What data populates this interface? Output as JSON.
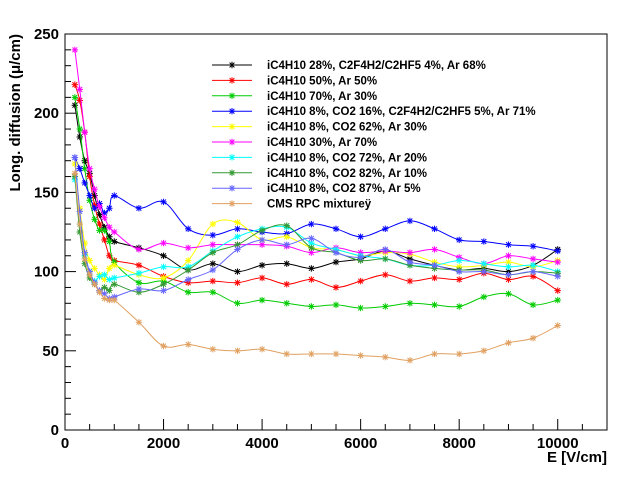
{
  "chart_data": {
    "type": "line",
    "xlabel": "E [V/cm]",
    "ylabel": "Long. diffusion (μ/cm)",
    "xlim": [
      0,
      11000
    ],
    "ylim": [
      0,
      250
    ],
    "x_ticks": [
      0,
      2000,
      4000,
      6000,
      8000,
      10000
    ],
    "y_ticks": [
      0,
      50,
      100,
      150,
      200,
      250
    ],
    "grid": false,
    "legend_position": "top-right",
    "series": [
      {
        "name": "iC4H10 28%, C2F4H2/C2HF5 4%, Ar 68%",
        "color": "#000000",
        "x": [
          200,
          300,
          400,
          500,
          600,
          700,
          800,
          900,
          1000,
          1500,
          2000,
          2500,
          3000,
          3500,
          4000,
          4500,
          5000,
          5500,
          6000,
          6500,
          7000,
          7500,
          8000,
          8500,
          9000,
          9500,
          10000
        ],
        "y": [
          205,
          185,
          170,
          162,
          148,
          136,
          128,
          122,
          119,
          115,
          110,
          101,
          105,
          100,
          104,
          105,
          102,
          106,
          108,
          113,
          108,
          104,
          101,
          102,
          100,
          104,
          114
        ]
      },
      {
        "name": "iC4H10 50%, Ar 50%",
        "color": "#ff0000",
        "x": [
          200,
          300,
          400,
          500,
          600,
          700,
          800,
          900,
          1000,
          1500,
          2000,
          2500,
          3000,
          3500,
          4000,
          4500,
          5000,
          5500,
          6000,
          6500,
          7000,
          7500,
          8000,
          8500,
          9000,
          9500,
          10000
        ],
        "y": [
          218,
          208,
          188,
          160,
          142,
          130,
          120,
          110,
          107,
          104,
          97,
          93,
          94,
          93,
          96,
          92,
          95,
          90,
          94,
          98,
          94,
          96,
          95,
          99,
          95,
          97,
          88
        ]
      },
      {
        "name": "iC4H10 70%, Ar 30%",
        "color": "#00cc00",
        "x": [
          200,
          300,
          400,
          500,
          600,
          700,
          800,
          900,
          1000,
          1500,
          2000,
          2500,
          3000,
          3500,
          4000,
          4500,
          5000,
          5500,
          6000,
          6500,
          7000,
          7500,
          8000,
          8500,
          9000,
          9500,
          10000
        ],
        "y": [
          210,
          190,
          165,
          145,
          133,
          126,
          126,
          119,
          106,
          93,
          94,
          87,
          87,
          80,
          82,
          80,
          78,
          79,
          77,
          78,
          80,
          79,
          78,
          84,
          86,
          79,
          82
        ]
      },
      {
        "name": "iC4H10 8%, CO2 16%, C2F4H2/C2HF5 5%, Ar 71%",
        "color": "#0000ff",
        "x": [
          200,
          300,
          400,
          500,
          600,
          700,
          800,
          900,
          1000,
          1500,
          2000,
          2500,
          3000,
          3500,
          4000,
          4500,
          5000,
          5500,
          6000,
          6500,
          7000,
          7500,
          8000,
          8500,
          9000,
          9500,
          10000
        ],
        "y": [
          172,
          165,
          156,
          148,
          140,
          143,
          137,
          140,
          148,
          140,
          144,
          127,
          123,
          127,
          125,
          124,
          130,
          127,
          122,
          127,
          132,
          127,
          120,
          119,
          117,
          116,
          113
        ]
      },
      {
        "name": "iC4H10 8%, CO2 62%, Ar 30%",
        "color": "#ffff00",
        "x": [
          200,
          300,
          400,
          500,
          600,
          700,
          800,
          900,
          1000,
          1500,
          2000,
          2500,
          3000,
          3500,
          4000,
          4500,
          5000,
          5500,
          6000,
          6500,
          7000,
          7500,
          8000,
          8500,
          9000,
          9500,
          10000
        ],
        "y": [
          168,
          140,
          118,
          107,
          102,
          98,
          95,
          102,
          104,
          98,
          96,
          107,
          130,
          131,
          120,
          122,
          115,
          114,
          110,
          112,
          111,
          106,
          103,
          104,
          106,
          103,
          107
        ]
      },
      {
        "name": "iC4H10 30%, Ar 70%",
        "color": "#ff00ff",
        "x": [
          200,
          300,
          400,
          500,
          600,
          700,
          800,
          900,
          1000,
          1500,
          2000,
          2500,
          3000,
          3500,
          4000,
          4500,
          5000,
          5500,
          6000,
          6500,
          7000,
          7500,
          8000,
          8500,
          9000,
          9500,
          10000
        ],
        "y": [
          240,
          215,
          188,
          165,
          152,
          141,
          134,
          128,
          125,
          114,
          118,
          115,
          117,
          117,
          117,
          116,
          112,
          115,
          112,
          113,
          112,
          114,
          109,
          105,
          110,
          108,
          106
        ]
      },
      {
        "name": "iC4H10 8%, CO2 72%, Ar 20%",
        "color": "#00ffff",
        "x": [
          200,
          300,
          400,
          500,
          600,
          700,
          800,
          900,
          1000,
          1500,
          2000,
          2500,
          3000,
          3500,
          4000,
          4500,
          5000,
          5500,
          6000,
          6500,
          7000,
          7500,
          8000,
          8500,
          9000,
          9500,
          10000
        ],
        "y": [
          158,
          130,
          110,
          100,
          94,
          97,
          98,
          95,
          96,
          99,
          103,
          103,
          113,
          122,
          127,
          128,
          118,
          114,
          110,
          108,
          104,
          104,
          107,
          105,
          103,
          104,
          100
        ]
      },
      {
        "name": "iC4H10 8%, CO2 82%, Ar 10%",
        "color": "#339933",
        "x": [
          200,
          300,
          400,
          500,
          600,
          700,
          800,
          900,
          1000,
          1500,
          2000,
          2500,
          3000,
          3500,
          4000,
          4500,
          5000,
          5500,
          6000,
          6500,
          7000,
          7500,
          8000,
          8500,
          9000,
          9500,
          10000
        ],
        "y": [
          160,
          125,
          105,
          96,
          92,
          88,
          90,
          88,
          92,
          87,
          92,
          101,
          112,
          117,
          126,
          129,
          115,
          112,
          107,
          108,
          104,
          102,
          101,
          101,
          98,
          100,
          99
        ]
      },
      {
        "name": "iC4H10 8%, CO2 87%, Ar 5%",
        "color": "#6666ff",
        "x": [
          200,
          300,
          400,
          500,
          600,
          700,
          800,
          900,
          1000,
          1500,
          2000,
          2500,
          3000,
          3500,
          4000,
          4500,
          5000,
          5500,
          6000,
          6500,
          7000,
          7500,
          8000,
          8500,
          9000,
          9500,
          10000
        ],
        "y": [
          172,
          138,
          112,
          100,
          93,
          88,
          86,
          83,
          84,
          89,
          88,
          95,
          101,
          114,
          120,
          117,
          121,
          112,
          109,
          114,
          106,
          104,
          100,
          100,
          98,
          100,
          97
        ]
      },
      {
        "name": "CMS RPC mixtureÿ",
        "color": "#e0a060",
        "x": [
          200,
          300,
          400,
          500,
          600,
          700,
          800,
          900,
          1000,
          1500,
          2000,
          2500,
          3000,
          3500,
          4000,
          4500,
          5000,
          5500,
          6000,
          6500,
          7000,
          7500,
          8000,
          8500,
          9000,
          9500,
          10000
        ],
        "y": [
          162,
          130,
          108,
          98,
          92,
          87,
          83,
          82,
          82,
          68,
          53,
          54,
          51,
          50,
          51,
          48,
          48,
          48,
          47,
          46,
          44,
          48,
          48,
          50,
          55,
          58,
          66
        ]
      }
    ]
  }
}
